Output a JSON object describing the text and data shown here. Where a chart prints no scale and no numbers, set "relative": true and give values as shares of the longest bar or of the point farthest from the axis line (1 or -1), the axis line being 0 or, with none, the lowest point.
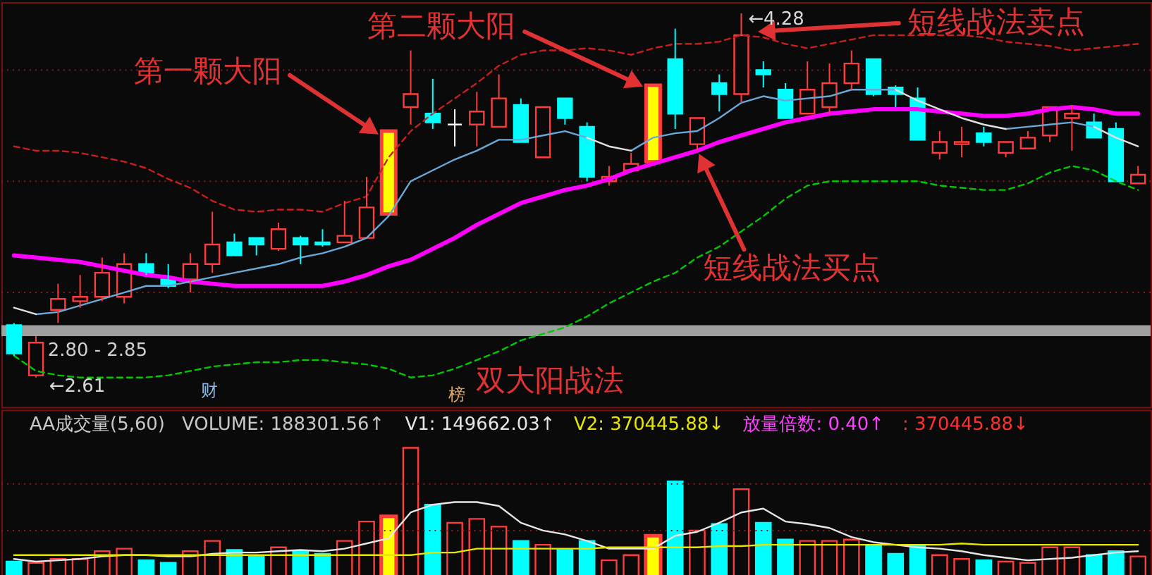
{
  "chart_data": [
    {
      "type": "candlestick",
      "title": "双大阳战法",
      "categories": [
        null,
        null,
        null,
        null,
        null,
        null,
        null,
        null,
        null,
        null,
        null,
        null,
        null,
        null,
        null,
        null,
        null,
        null,
        null,
        null,
        null,
        null,
        null,
        null,
        null,
        null,
        null,
        null,
        null,
        null,
        null,
        null,
        null,
        null,
        null,
        null,
        null,
        null,
        null,
        null,
        null,
        null,
        null,
        null,
        null,
        null,
        null,
        null,
        null,
        null,
        null,
        null
      ],
      "ohlc": [
        [
          2.85,
          2.86,
          2.71,
          2.72
        ],
        [
          2.62,
          2.8,
          2.61,
          2.77
        ],
        [
          2.92,
          3.04,
          2.86,
          2.97
        ],
        [
          2.96,
          3.08,
          2.93,
          2.98
        ],
        [
          2.98,
          3.16,
          2.96,
          3.09
        ],
        [
          2.98,
          3.18,
          2.95,
          3.13
        ],
        [
          3.13,
          3.18,
          3.08,
          3.09
        ],
        [
          3.06,
          3.13,
          3.02,
          3.03
        ],
        [
          3.06,
          3.18,
          3.0,
          3.13
        ],
        [
          3.13,
          3.37,
          3.09,
          3.22
        ],
        [
          3.23,
          3.27,
          3.17,
          3.17
        ],
        [
          3.25,
          3.25,
          3.17,
          3.22
        ],
        [
          3.2,
          3.32,
          3.19,
          3.29
        ],
        [
          3.25,
          3.26,
          3.13,
          3.22
        ],
        [
          3.23,
          3.29,
          3.21,
          3.22
        ],
        [
          3.23,
          3.42,
          3.23,
          3.26
        ],
        [
          3.25,
          3.53,
          3.25,
          3.39
        ],
        [
          3.36,
          3.74,
          3.36,
          3.74
        ],
        [
          3.85,
          4.11,
          3.77,
          3.91
        ],
        [
          3.82,
          3.98,
          3.75,
          3.78
        ],
        [
          3.77,
          3.84,
          3.67,
          3.77
        ],
        [
          3.77,
          3.92,
          3.67,
          3.83
        ],
        [
          3.76,
          4.0,
          3.76,
          3.89
        ],
        [
          3.86,
          3.89,
          3.69,
          3.69
        ],
        [
          3.62,
          3.85,
          3.62,
          3.85
        ],
        [
          3.89,
          3.89,
          3.77,
          3.8
        ],
        [
          3.76,
          3.78,
          3.51,
          3.53
        ],
        [
          3.51,
          3.58,
          3.49,
          3.53
        ],
        [
          3.56,
          3.64,
          3.56,
          3.59
        ],
        [
          3.6,
          3.95,
          3.6,
          3.95
        ],
        [
          4.07,
          4.21,
          3.75,
          3.82
        ],
        [
          3.68,
          3.8,
          3.65,
          3.8
        ],
        [
          3.96,
          4.0,
          3.83,
          3.91
        ],
        [
          3.91,
          4.28,
          3.87,
          4.18
        ],
        [
          4.02,
          4.06,
          3.94,
          4.0
        ],
        [
          3.93,
          3.96,
          3.8,
          3.8
        ],
        [
          3.82,
          4.06,
          3.82,
          3.93
        ],
        [
          3.85,
          4.05,
          3.82,
          3.96
        ],
        [
          3.96,
          4.11,
          3.93,
          4.05
        ],
        [
          4.07,
          4.07,
          3.9,
          3.91
        ],
        [
          3.94,
          3.95,
          3.85,
          3.91
        ],
        [
          3.89,
          3.94,
          3.7,
          3.7
        ],
        [
          3.64,
          3.74,
          3.61,
          3.69
        ],
        [
          3.68,
          3.76,
          3.62,
          3.69
        ],
        [
          3.73,
          3.76,
          3.67,
          3.69
        ],
        [
          3.64,
          3.69,
          3.62,
          3.69
        ],
        [
          3.66,
          3.74,
          3.66,
          3.71
        ],
        [
          3.72,
          3.85,
          3.69,
          3.85
        ],
        [
          3.8,
          3.86,
          3.65,
          3.82
        ],
        [
          3.78,
          3.82,
          3.71,
          3.71
        ],
        [
          3.75,
          3.78,
          3.51,
          3.51
        ],
        [
          3.5,
          3.58,
          3.5,
          3.54
        ]
      ],
      "colors": [
        "#00ffff",
        "#ff3c3c",
        "#ff3c3c",
        "#ff3c3c",
        "#ff3c3c",
        "#ff3c3c",
        "#00ffff",
        "#00ffff",
        "#ff3c3c",
        "#ff3c3c",
        "#00ffff",
        "#00ffff",
        "#ff3c3c",
        "#00ffff",
        "#00ffff",
        "#ff3c3c",
        "#ff3c3c",
        "#ffff00",
        "#ff3c3c",
        "#00ffff",
        "#ffffff",
        "#ff3c3c",
        "#ff3c3c",
        "#00ffff",
        "#ff3c3c",
        "#00ffff",
        "#00ffff",
        "#ff3c3c",
        "#ff3c3c",
        "#ffff00",
        "#00ffff",
        "#ff3c3c",
        "#00ffff",
        "#ff3c3c",
        "#00ffff",
        "#00ffff",
        "#ff3c3c",
        "#ff3c3c",
        "#ff3c3c",
        "#00ffff",
        "#00ffff",
        "#00ffff",
        "#ff3c3c",
        "#ff3c3c",
        "#00ffff",
        "#ff3c3c",
        "#ff3c3c",
        "#ff3c3c",
        "#ff3c3c",
        "#00ffff",
        "#00ffff",
        "#ff3c3c"
      ],
      "series": [
        {
          "type": "line",
          "color": "#c81e1e",
          "line_style": "dashed",
          "values": [
            3.67,
            3.65,
            3.65,
            3.64,
            3.62,
            3.6,
            3.57,
            3.52,
            3.48,
            3.42,
            3.38,
            3.37,
            3.38,
            3.38,
            3.37,
            3.41,
            3.44,
            3.62,
            3.74,
            3.82,
            3.89,
            3.96,
            4.04,
            4.09,
            4.11,
            4.11,
            4.12,
            4.11,
            4.09,
            4.12,
            4.14,
            4.14,
            4.15,
            4.18,
            4.17,
            4.14,
            4.12,
            4.14,
            4.16,
            4.18,
            4.18,
            4.18,
            4.18,
            4.18,
            4.17,
            4.15,
            4.14,
            4.13,
            4.11,
            4.12,
            4.13,
            4.14
          ]
        },
        {
          "type": "line",
          "color": "#ff00ff",
          "values": [
            3.17,
            3.16,
            3.15,
            3.14,
            3.12,
            3.1,
            3.08,
            3.07,
            3.05,
            3.04,
            3.03,
            3.03,
            3.03,
            3.03,
            3.03,
            3.05,
            3.08,
            3.12,
            3.15,
            3.2,
            3.25,
            3.31,
            3.36,
            3.41,
            3.44,
            3.47,
            3.49,
            3.52,
            3.56,
            3.59,
            3.62,
            3.65,
            3.69,
            3.72,
            3.75,
            3.78,
            3.8,
            3.82,
            3.83,
            3.84,
            3.84,
            3.84,
            3.83,
            3.82,
            3.81,
            3.81,
            3.82,
            3.84,
            3.85,
            3.84,
            3.82,
            3.82
          ]
        },
        {
          "type": "line",
          "color": "#00c800",
          "line_style": "dashed",
          "values": [
            2.71,
            2.64,
            2.62,
            2.61,
            2.61,
            2.61,
            2.61,
            2.62,
            2.64,
            2.66,
            2.67,
            2.68,
            2.68,
            2.69,
            2.69,
            2.68,
            2.67,
            2.65,
            2.61,
            2.62,
            2.65,
            2.69,
            2.73,
            2.78,
            2.81,
            2.84,
            2.89,
            2.95,
            3.0,
            3.05,
            3.09,
            3.16,
            3.21,
            3.28,
            3.35,
            3.43,
            3.49,
            3.51,
            3.51,
            3.51,
            3.51,
            3.51,
            3.49,
            3.48,
            3.47,
            3.47,
            3.5,
            3.55,
            3.58,
            3.56,
            3.51,
            3.47
          ]
        },
        {
          "type": "line",
          "color": "#6aa8d8",
          "values": [
            null,
            2.9,
            2.91,
            2.94,
            2.97,
            3.0,
            3.03,
            3.03,
            3.05,
            3.07,
            3.09,
            3.11,
            3.13,
            3.16,
            3.18,
            3.21,
            3.25,
            3.35,
            3.51,
            3.56,
            3.61,
            3.65,
            3.7,
            3.7,
            3.72,
            3.74,
            3.71,
            null,
            3.65,
            3.71,
            3.73,
            3.74,
            3.8,
            3.87,
            3.9,
            3.88,
            3.89,
            3.9,
            3.93,
            3.93,
            3.93,
            null,
            null,
            null,
            null,
            3.75,
            3.76,
            3.77,
            3.78,
            3.76,
            null,
            null
          ]
        },
        {
          "type": "line",
          "color": "#e0e0e0",
          "values": [
            2.93,
            2.9,
            null,
            null,
            null,
            null,
            null,
            null,
            null,
            null,
            null,
            null,
            null,
            null,
            null,
            null,
            null,
            null,
            null,
            null,
            null,
            null,
            null,
            null,
            null,
            null,
            3.71,
            3.67,
            3.65,
            null,
            null,
            null,
            null,
            null,
            null,
            null,
            null,
            null,
            null,
            null,
            3.93,
            3.88,
            3.84,
            3.8,
            3.77,
            3.75,
            null,
            null,
            null,
            3.76,
            3.71,
            3.67
          ]
        }
      ],
      "bands": [
        {
          "axis": "y",
          "from": 2.8,
          "to": 2.85,
          "label": "2.80 - 2.85",
          "color": "#a0a0a0"
        }
      ],
      "ref_lines": [
        {
          "axis": "y",
          "value": 3.0,
          "color": "#8a1c1c",
          "line_style": "dotted"
        },
        {
          "axis": "y",
          "value": 3.51,
          "color": "#8a1c1c",
          "line_style": "dotted"
        },
        {
          "axis": "y",
          "value": 4.02,
          "color": "#8a1c1c",
          "line_style": "dotted"
        }
      ],
      "annotations": [
        "第一颗大阳",
        "第二颗大阳",
        "短线战法卖点",
        "短线战法买点",
        "←4.28",
        "←2.61",
        "财",
        "榜"
      ],
      "tick_labels": false
    },
    {
      "type": "bar",
      "title": "AA成交量(5,60)",
      "categories": [
        null,
        null,
        null,
        null,
        null,
        null,
        null,
        null,
        null,
        null,
        null,
        null,
        null,
        null,
        null,
        null,
        null,
        null,
        null,
        null,
        null,
        null,
        null,
        null,
        null,
        null,
        null,
        null,
        null,
        null,
        null,
        null,
        null,
        null,
        null,
        null,
        null,
        null,
        null,
        null,
        null,
        null,
        null,
        null,
        null,
        null,
        null,
        null,
        null,
        null,
        null,
        null
      ],
      "relative": true,
      "values": [
        0.12,
        0.11,
        0.14,
        0.14,
        0.2,
        0.22,
        0.13,
        0.11,
        0.2,
        0.28,
        0.21,
        0.16,
        0.23,
        0.2,
        0.18,
        0.28,
        0.43,
        0.47,
        1.0,
        0.56,
        0.42,
        0.45,
        0.39,
        0.28,
        0.25,
        0.21,
        0.28,
        0.13,
        0.17,
        0.32,
        0.74,
        0.36,
        0.41,
        0.68,
        0.42,
        0.29,
        0.28,
        0.28,
        0.29,
        0.25,
        0.18,
        0.24,
        0.17,
        0.14,
        0.13,
        0.12,
        0.11,
        0.23,
        0.23,
        0.17,
        0.2,
        0.16
      ],
      "colors": [
        "#00ffff",
        "#ff3c3c",
        "#ff3c3c",
        "#ff3c3c",
        "#ff3c3c",
        "#ff3c3c",
        "#00ffff",
        "#00ffff",
        "#ff3c3c",
        "#ff3c3c",
        "#00ffff",
        "#00ffff",
        "#ff3c3c",
        "#00ffff",
        "#00ffff",
        "#ff3c3c",
        "#ff3c3c",
        "#ffff00",
        "#ff3c3c",
        "#00ffff",
        "#ff3c3c",
        "#ff3c3c",
        "#ff3c3c",
        "#00ffff",
        "#ff3c3c",
        "#00ffff",
        "#00ffff",
        "#ff3c3c",
        "#ff3c3c",
        "#ffff00",
        "#00ffff",
        "#ff3c3c",
        "#00ffff",
        "#ff3c3c",
        "#00ffff",
        "#00ffff",
        "#ff3c3c",
        "#ff3c3c",
        "#ff3c3c",
        "#00ffff",
        "#00ffff",
        "#00ffff",
        "#ff3c3c",
        "#ff3c3c",
        "#00ffff",
        "#ff3c3c",
        "#ff3c3c",
        "#ff3c3c",
        "#ff3c3c",
        "#00ffff",
        "#00ffff",
        "#ff3c3c"
      ],
      "series": [
        {
          "type": "line",
          "name": "V1: 149662.03↑",
          "color": "#e6e6e6",
          "values": [
            0.14,
            0.12,
            0.13,
            0.14,
            0.16,
            0.17,
            0.17,
            0.16,
            0.16,
            0.18,
            0.19,
            0.19,
            0.2,
            0.21,
            0.2,
            0.22,
            0.26,
            0.3,
            0.5,
            0.56,
            0.58,
            0.58,
            0.55,
            0.42,
            0.36,
            0.33,
            0.28,
            0.22,
            0.22,
            0.22,
            0.32,
            0.35,
            0.42,
            0.5,
            0.53,
            0.43,
            0.41,
            0.38,
            0.31,
            0.27,
            0.25,
            0.23,
            0.22,
            0.2,
            0.17,
            0.15,
            0.13,
            0.14,
            0.15,
            0.17,
            0.19,
            0.2
          ]
        },
        {
          "type": "line",
          "name": "V2: 370445.88↓",
          "color": "#e6e600",
          "values": [
            0.17,
            0.17,
            0.17,
            0.17,
            0.17,
            0.17,
            0.17,
            0.17,
            0.17,
            0.17,
            0.17,
            0.17,
            0.17,
            0.17,
            0.17,
            0.17,
            0.17,
            0.17,
            0.17,
            0.19,
            0.19,
            0.22,
            0.22,
            0.22,
            0.22,
            0.22,
            0.22,
            0.23,
            0.23,
            0.23,
            0.23,
            0.23,
            0.24,
            0.24,
            0.25,
            0.25,
            0.25,
            0.25,
            0.25,
            0.25,
            0.25,
            0.25,
            0.25,
            0.26,
            0.25,
            0.25,
            0.25,
            0.25,
            0.25,
            0.25,
            0.25,
            0.25
          ]
        }
      ],
      "ref_lines": [
        {
          "axis": "y",
          "value": 0.36,
          "color": "#8a1c1c",
          "line_style": "dotted"
        },
        {
          "axis": "y",
          "value": 0.72,
          "color": "#8a1c1c",
          "line_style": "dotted"
        }
      ],
      "annotations": [
        "VOLUME: 188301.56↑",
        "放量倍数: 0.40↑",
        ": 370445.88↓"
      ],
      "tick_labels": false
    }
  ]
}
